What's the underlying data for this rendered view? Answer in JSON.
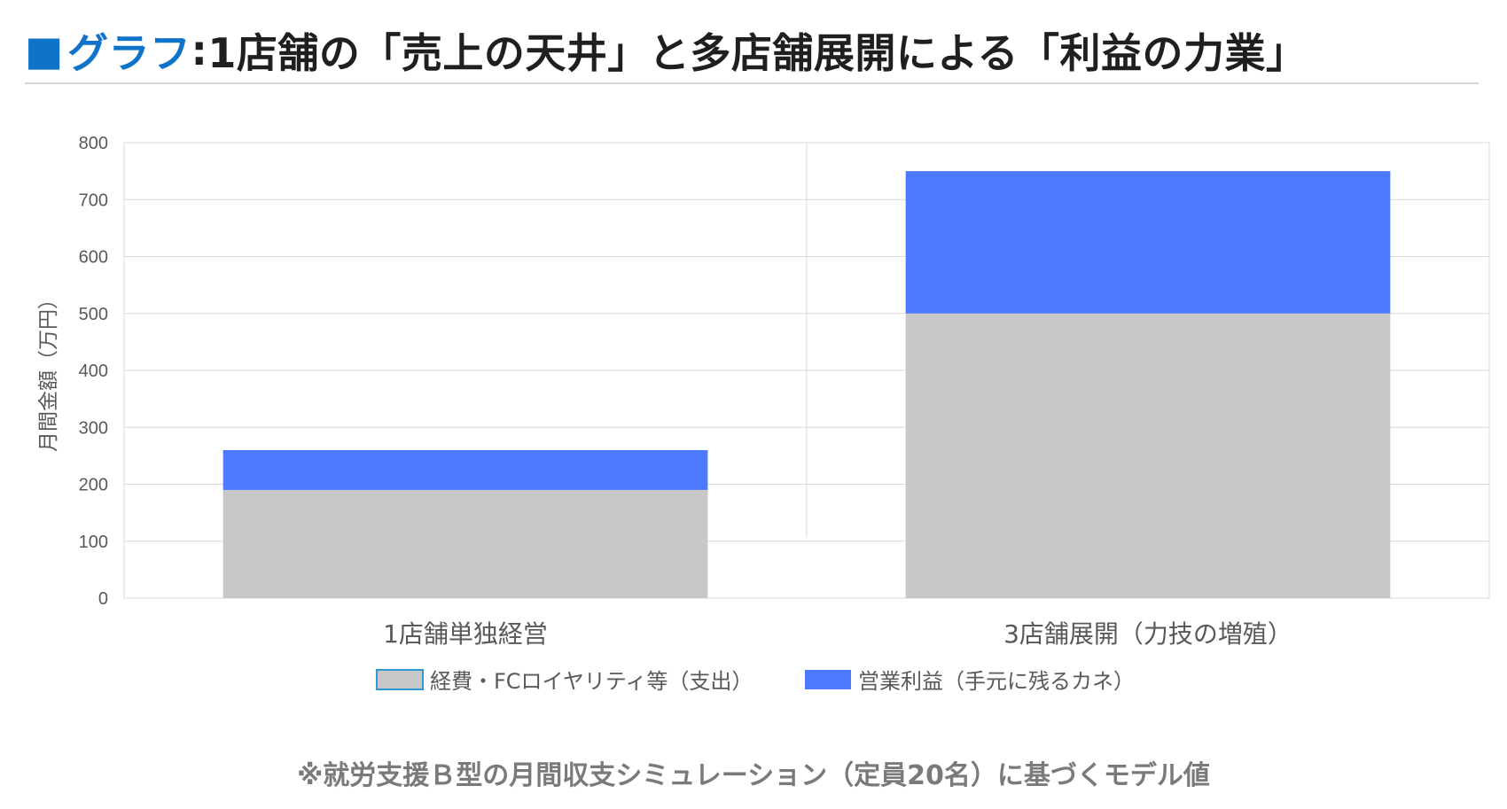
{
  "title": {
    "marker": "■",
    "accent": "グラフ",
    "separator": ":",
    "text": "1店舗の「売上の天井」と多店舗展開による「利益の力業」"
  },
  "colors": {
    "accent": "#0f74c9",
    "expense": "#c8c8c8",
    "profit": "#4d79ff"
  },
  "chart_data": {
    "type": "bar",
    "stacked": true,
    "categories": [
      "1店舗単独経営",
      "3店舗展開（力技の増殖）"
    ],
    "series": [
      {
        "name": "経費・FCロイヤリティ等（支出）",
        "values": [
          190,
          500
        ],
        "color": "#c8c8c8"
      },
      {
        "name": "営業利益（手元に残るカネ）",
        "values": [
          70,
          250
        ],
        "color": "#4d79ff"
      }
    ],
    "ylabel": "月間金額（万円）",
    "xlabel": "",
    "ylim": [
      0,
      800
    ],
    "yticks": [
      0,
      100,
      200,
      300,
      400,
      500,
      600,
      700,
      800
    ],
    "grid": true,
    "legend": "bottom"
  },
  "footnote": "※就労支援Ｂ型の月間収支シミュレーション（定員20名）に基づくモデル値"
}
